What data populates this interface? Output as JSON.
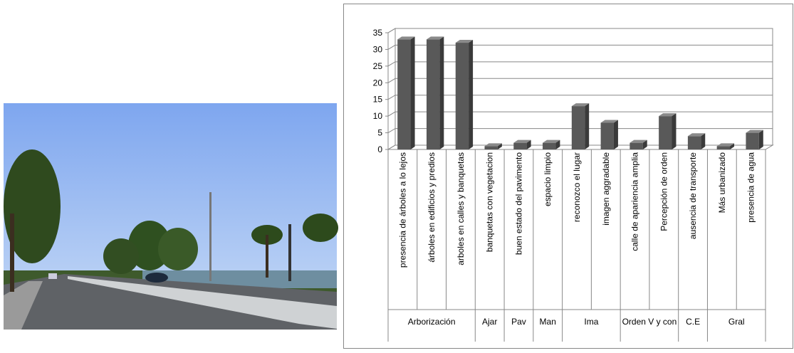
{
  "chart_data": {
    "type": "bar3d",
    "groups": [
      {
        "name": "Arborización",
        "categories": [
          "presencia de árboles a lo lejos",
          "árboles en edificios y predios",
          "arboles en calles y banquetas"
        ],
        "values": [
          33,
          33,
          32
        ]
      },
      {
        "name": "Ajar",
        "categories": [
          "banquetas con vegetacion"
        ],
        "values": [
          1
        ]
      },
      {
        "name": "Pav",
        "categories": [
          "buen estado del pavimento"
        ],
        "values": [
          2
        ]
      },
      {
        "name": "Man",
        "categories": [
          "espacio limpio"
        ],
        "values": [
          2
        ]
      },
      {
        "name": "Ima",
        "categories": [
          "reconozco el lugar",
          "imagen aggradable"
        ],
        "values": [
          13,
          8
        ]
      },
      {
        "name": "Orden V y con",
        "categories": [
          "calle de apariencia amplia",
          "Percepción de orden"
        ],
        "values": [
          2,
          10
        ]
      },
      {
        "name": "C.E",
        "categories": [
          "ausencia de transporte"
        ],
        "values": [
          4
        ]
      },
      {
        "name": "Gral",
        "categories": [
          "Más urbanizado",
          "presencia de agua"
        ],
        "values": [
          1,
          5
        ]
      }
    ],
    "color": "#595959",
    "ylim": [
      0,
      35
    ],
    "yticks": [
      0,
      5,
      10,
      15,
      20,
      25,
      30,
      35
    ],
    "grid": true
  }
}
